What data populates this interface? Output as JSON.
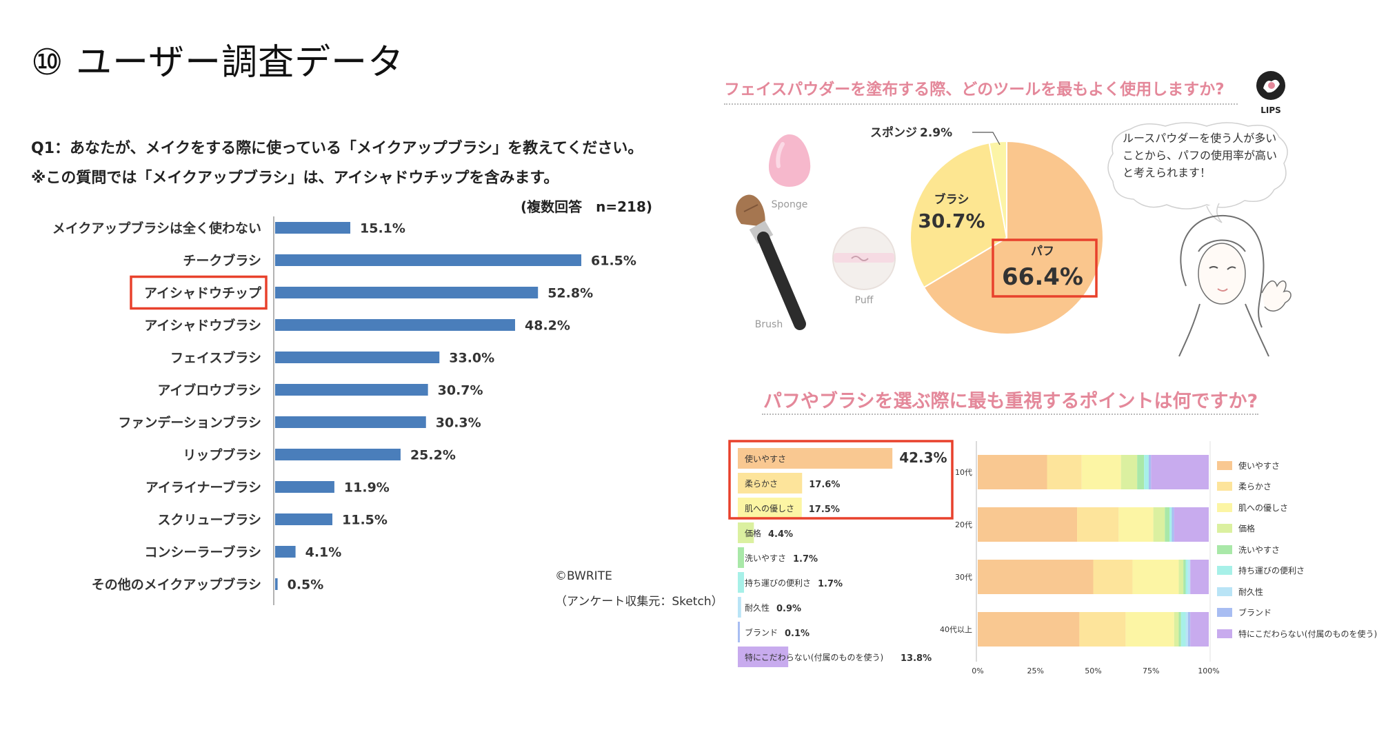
{
  "slide": {
    "title": "⑩ ユーザー調査データ"
  },
  "survey1": {
    "question_line1": "Q1：あなたが、メイクをする際に使っている「メイクアップブラシ」を教えてください。",
    "question_line2": "※この質問では「メイクアップブラシ」は、アイシャドウチップを含みます。",
    "note": "(複数回答　n=218)",
    "credit": "©BWRITE",
    "source": "（アンケート収集元：Sketch）"
  },
  "survey2": {
    "question": "フェイスパウダーを塗布する際、どのツールを最もよく使用しますか?",
    "logo_text": "LIPS",
    "tool_labels": {
      "sponge": "Sponge",
      "puff": "Puff",
      "brush": "Brush"
    },
    "speech": "ルースパウダーを使う人が多いことから、パフの使用率が高いと考えられます！"
  },
  "survey3": {
    "question": "パフやブラシを選ぶ際に最も重視するポイントは何ですか?"
  },
  "chart_data": [
    {
      "type": "bar",
      "orientation": "horizontal",
      "categories": [
        "メイクアップブラシは全く使わない",
        "チークブラシ",
        "アイシャドウチップ",
        "アイシャドウブラシ",
        "フェイスブラシ",
        "アイブロウブラシ",
        "ファンデーションブラシ",
        "リップブラシ",
        "アイライナーブラシ",
        "スクリューブラシ",
        "コンシーラーブラシ",
        "その他のメイクアップブラシ"
      ],
      "values": [
        15.1,
        61.5,
        52.8,
        48.2,
        33.0,
        30.7,
        30.3,
        25.2,
        11.9,
        11.5,
        4.1,
        0.5
      ],
      "value_labels": [
        "15.1%",
        "61.5%",
        "52.8%",
        "48.2%",
        "33.0%",
        "30.7%",
        "30.3%",
        "25.2%",
        "11.9%",
        "11.5%",
        "4.1%",
        "0.5%"
      ],
      "unit": "%",
      "highlight": "アイシャドウチップ",
      "color": "#4a7ebb"
    },
    {
      "type": "pie",
      "labels": [
        "パフ",
        "ブラシ",
        "スポンジ"
      ],
      "values": [
        66.4,
        30.7,
        2.9
      ],
      "value_labels": [
        "66.4%",
        "30.7%",
        "2.9%"
      ],
      "colors": [
        "#fac68d",
        "#fde691",
        "#fcf4a6"
      ],
      "highlight": "パフ"
    },
    {
      "type": "bar",
      "orientation": "horizontal",
      "categories": [
        "使いやすさ",
        "柔らかさ",
        "肌への優しさ",
        "価格",
        "洗いやすさ",
        "持ち運びの便利さ",
        "耐久性",
        "ブランド",
        "特にこだわらない(付属のものを使う)"
      ],
      "values": [
        42.3,
        17.6,
        17.5,
        4.4,
        1.7,
        1.7,
        0.9,
        0.1,
        13.8
      ],
      "value_labels": [
        "42.3%",
        "17.6%",
        "17.5%",
        "4.4%",
        "1.7%",
        "1.7%",
        "0.9%",
        "0.1%",
        "13.8%"
      ],
      "colors": [
        "#f9c891",
        "#fde49b",
        "#fcf5a4",
        "#dbf0a0",
        "#a9e8a8",
        "#a7f0e8",
        "#b9e4f6",
        "#a8bdf2",
        "#c8abee"
      ],
      "highlight": [
        "使いやすさ",
        "柔らかさ",
        "肌への優しさ"
      ]
    },
    {
      "type": "bar",
      "stacked": true,
      "orientation": "horizontal",
      "categories": [
        "10代",
        "20代",
        "30代",
        "40代以上"
      ],
      "x_ticks": [
        "0%",
        "25%",
        "50%",
        "75%",
        "100%"
      ],
      "xlim": [
        0,
        100
      ],
      "series": [
        {
          "name": "使いやすさ",
          "values": [
            30,
            43,
            50,
            44
          ]
        },
        {
          "name": "柔らかさ",
          "values": [
            15,
            18,
            17,
            20
          ]
        },
        {
          "name": "肌への優しさ",
          "values": [
            17,
            15,
            20,
            21
          ]
        },
        {
          "name": "価格",
          "values": [
            7,
            5,
            2,
            2
          ]
        },
        {
          "name": "洗いやすさ",
          "values": [
            3,
            2,
            1,
            1
          ]
        },
        {
          "name": "持ち運びの便利さ",
          "values": [
            2,
            1,
            1,
            2
          ]
        },
        {
          "name": "耐久性",
          "values": [
            0,
            0,
            1,
            1
          ]
        },
        {
          "name": "ブランド",
          "values": [
            1,
            1,
            0,
            1
          ]
        },
        {
          "name": "特にこだわらない(付属のものを使う)",
          "values": [
            25,
            15,
            8,
            8
          ]
        }
      ],
      "legend": "right"
    }
  ]
}
